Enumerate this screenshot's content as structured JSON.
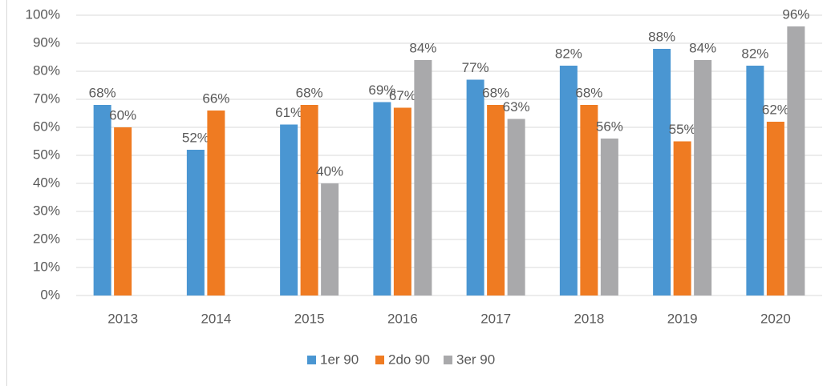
{
  "chart_data": {
    "type": "bar",
    "categories": [
      "2013",
      "2014",
      "2015",
      "2016",
      "2017",
      "2018",
      "2019",
      "2020"
    ],
    "series": [
      {
        "name": "1er 90",
        "color": "#4a96d2",
        "values": [
          68,
          52,
          61,
          69,
          77,
          82,
          88,
          82
        ],
        "value_labels": [
          "68%",
          "52%",
          "61%",
          "69%",
          "77%",
          "82%",
          "88%",
          "82%"
        ]
      },
      {
        "name": "2do 90",
        "color": "#ef7b22",
        "values": [
          60,
          66,
          68,
          67,
          68,
          68,
          55,
          62
        ],
        "value_labels": [
          "60%",
          "66%",
          "68%",
          "67%",
          "68%",
          "68%",
          "55%",
          "62%"
        ]
      },
      {
        "name": "3er 90",
        "color": "#a9a9ab",
        "values": [
          null,
          null,
          40,
          84,
          63,
          56,
          84,
          96
        ],
        "value_labels": [
          null,
          null,
          "40%",
          "84%",
          "63%",
          "56%",
          "84%",
          "96%"
        ]
      }
    ],
    "ylim": [
      0,
      100
    ],
    "yticks": [
      {
        "value": 0,
        "label": "0%"
      },
      {
        "value": 10,
        "label": "10%"
      },
      {
        "value": 20,
        "label": "20%"
      },
      {
        "value": 30,
        "label": "30%"
      },
      {
        "value": 40,
        "label": "40%"
      },
      {
        "value": 50,
        "label": "50%"
      },
      {
        "value": 60,
        "label": "60%"
      },
      {
        "value": 70,
        "label": "70%"
      },
      {
        "value": 80,
        "label": "80%"
      },
      {
        "value": 90,
        "label": "90%"
      },
      {
        "value": 100,
        "label": "100%"
      }
    ],
    "grid": true,
    "legend": "bottom"
  }
}
